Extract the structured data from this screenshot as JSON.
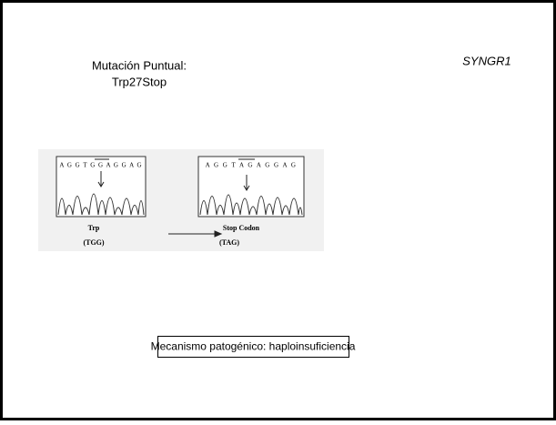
{
  "slide": {
    "title_line1": "Mutación Puntual:",
    "title_line2": "Trp27Stop",
    "gene": "SYNGR1",
    "figure": {
      "left_sequence": "A G G T G G A G G A G",
      "right_sequence": "A G G T A G A G G A G",
      "left_label": "Trp",
      "left_codon": "(TGG)",
      "right_label": "Stop Codon",
      "right_codon": "(TAG)"
    },
    "mechanism": "Mecanismo patogénico: haploinsuficiencia"
  }
}
